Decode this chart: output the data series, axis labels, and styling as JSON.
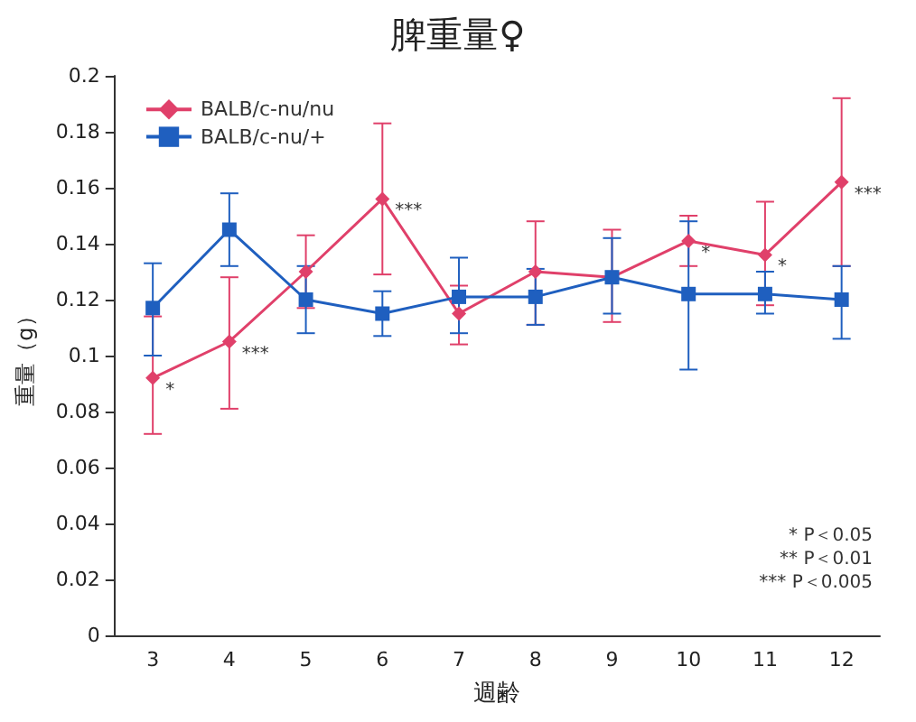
{
  "chart_data": {
    "type": "line",
    "title": "脾重量♀",
    "xlabel": "週齢",
    "ylabel": "重量（g）",
    "categories": [
      "3",
      "4",
      "5",
      "6",
      "7",
      "8",
      "9",
      "10",
      "11",
      "12"
    ],
    "series": [
      {
        "name": "BALB/c-nu/nu",
        "color": "#e0406a",
        "marker": "diamond",
        "values": [
          0.092,
          0.105,
          0.13,
          0.156,
          0.115,
          0.13,
          0.128,
          0.141,
          0.136,
          0.162
        ],
        "errors": [
          [
            0.072,
            0.114
          ],
          [
            0.081,
            0.128
          ],
          [
            0.117,
            0.143
          ],
          [
            0.129,
            0.183
          ],
          [
            0.104,
            0.125
          ],
          [
            0.111,
            0.148
          ],
          [
            0.112,
            0.145
          ],
          [
            0.132,
            0.15
          ],
          [
            0.118,
            0.155
          ],
          [
            0.132,
            0.192
          ]
        ]
      },
      {
        "name": "BALB/c-nu/+",
        "color": "#1f5fbf",
        "marker": "square",
        "values": [
          0.117,
          0.145,
          0.12,
          0.115,
          0.121,
          0.121,
          0.128,
          0.122,
          0.122,
          0.12
        ],
        "errors": [
          [
            0.1,
            0.133
          ],
          [
            0.132,
            0.158
          ],
          [
            0.108,
            0.132
          ],
          [
            0.107,
            0.123
          ],
          [
            0.108,
            0.135
          ],
          [
            0.111,
            0.131
          ],
          [
            0.115,
            0.142
          ],
          [
            0.095,
            0.148
          ],
          [
            0.115,
            0.13
          ],
          [
            0.106,
            0.132
          ]
        ]
      }
    ],
    "ylim": [
      0,
      0.2
    ],
    "yticks": [
      0,
      0.02,
      0.04,
      0.06,
      0.08,
      0.1,
      0.12,
      0.14,
      0.16,
      0.18,
      0.2
    ],
    "grid": false,
    "legend": "top left",
    "line_style": "solid",
    "annotations": [
      {
        "text": "*",
        "x": "3",
        "y": 0.092
      },
      {
        "text": "***",
        "x": "4",
        "y": 0.105
      },
      {
        "text": "***",
        "x": "6",
        "y": 0.156
      },
      {
        "text": "*",
        "x": "10",
        "y": 0.141
      },
      {
        "text": "*",
        "x": "11",
        "y": 0.136
      },
      {
        "text": "***",
        "x": "12",
        "y": 0.162
      },
      "* P＜0.05",
      "** P＜0.01",
      "*** P＜0.005"
    ]
  }
}
